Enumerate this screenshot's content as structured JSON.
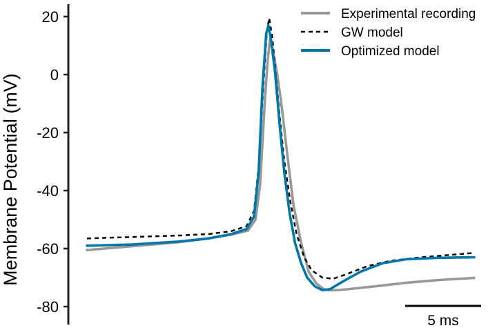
{
  "chart_data": {
    "type": "line",
    "title": "",
    "xlabel": "",
    "ylabel": "Membrane Potential (mV)",
    "ylim": [
      -83,
      25
    ],
    "xlim": [
      0,
      26
    ],
    "yticks": [
      20,
      0,
      -20,
      -40,
      -60,
      -80
    ],
    "ytick_labels": [
      "20",
      "0",
      "-20",
      "-40",
      "-60",
      "-80"
    ],
    "grid": false,
    "legend_position": "top-right",
    "scalebar": {
      "length_ms": 5,
      "label": "5 ms"
    },
    "series": [
      {
        "name": "Experimental recording",
        "color": "#999999",
        "style": "solid",
        "points": [
          [
            0,
            -60.5
          ],
          [
            3,
            -59.2
          ],
          [
            6,
            -57.8
          ],
          [
            8,
            -56.5
          ],
          [
            9.5,
            -55.2
          ],
          [
            10.6,
            -53.8
          ],
          [
            11.1,
            -50
          ],
          [
            11.4,
            -38
          ],
          [
            11.7,
            -10
          ],
          [
            11.9,
            5
          ],
          [
            12.05,
            12
          ],
          [
            12.25,
            8
          ],
          [
            12.5,
            1
          ],
          [
            12.8,
            -10
          ],
          [
            13.2,
            -28
          ],
          [
            13.6,
            -45
          ],
          [
            14.1,
            -58
          ],
          [
            14.6,
            -68
          ],
          [
            15.1,
            -72
          ],
          [
            15.6,
            -74
          ],
          [
            16.1,
            -74.4
          ],
          [
            17,
            -74.1
          ],
          [
            19,
            -73
          ],
          [
            21,
            -71.8
          ],
          [
            23,
            -70.9
          ],
          [
            25.5,
            -70.1
          ]
        ]
      },
      {
        "name": "GW model",
        "color": "#000000",
        "style": "dashed",
        "points": [
          [
            0,
            -56.5
          ],
          [
            3,
            -56
          ],
          [
            6,
            -55.5
          ],
          [
            8,
            -55
          ],
          [
            9.5,
            -54
          ],
          [
            10.5,
            -52.3
          ],
          [
            11.0,
            -47
          ],
          [
            11.3,
            -32
          ],
          [
            11.6,
            -5
          ],
          [
            11.85,
            15
          ],
          [
            12.0,
            19.5
          ],
          [
            12.2,
            13
          ],
          [
            12.4,
            2
          ],
          [
            12.7,
            -15
          ],
          [
            13.0,
            -30
          ],
          [
            13.4,
            -44
          ],
          [
            13.8,
            -55
          ],
          [
            14.3,
            -63
          ],
          [
            14.8,
            -67.5
          ],
          [
            15.5,
            -70
          ],
          [
            16.2,
            -70.4
          ],
          [
            17,
            -69
          ],
          [
            18.5,
            -66
          ],
          [
            20,
            -64.2
          ],
          [
            22,
            -63
          ],
          [
            25.5,
            -61.5
          ]
        ]
      },
      {
        "name": "Optimized model",
        "color": "#0077aa",
        "style": "solid",
        "points": [
          [
            0,
            -59
          ],
          [
            3,
            -58.6
          ],
          [
            6,
            -57.6
          ],
          [
            8,
            -56.5
          ],
          [
            9.5,
            -55
          ],
          [
            10.5,
            -53.3
          ],
          [
            11.0,
            -49
          ],
          [
            11.3,
            -34
          ],
          [
            11.55,
            -5
          ],
          [
            11.8,
            14
          ],
          [
            11.95,
            17
          ],
          [
            12.15,
            11
          ],
          [
            12.4,
            0
          ],
          [
            12.7,
            -18
          ],
          [
            13.0,
            -34
          ],
          [
            13.35,
            -48
          ],
          [
            13.7,
            -58
          ],
          [
            14.1,
            -65
          ],
          [
            14.5,
            -70
          ],
          [
            15.0,
            -73
          ],
          [
            15.5,
            -74.3
          ],
          [
            16.0,
            -74
          ],
          [
            16.8,
            -71.5
          ],
          [
            18,
            -68
          ],
          [
            19.5,
            -65
          ],
          [
            21,
            -63.7
          ],
          [
            23,
            -63.2
          ],
          [
            25.5,
            -63
          ]
        ]
      }
    ]
  }
}
